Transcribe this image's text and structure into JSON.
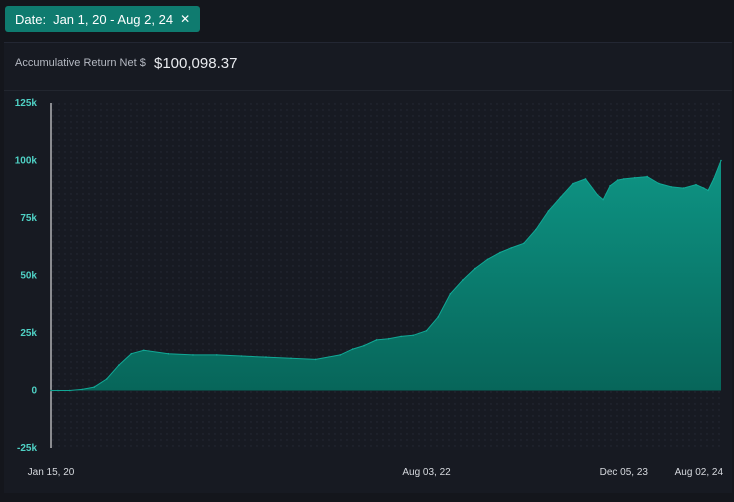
{
  "filter": {
    "label": "Date:",
    "value": "Jan 1, 20 - Aug 2, 24",
    "close_icon": "close-icon",
    "color": "#0f7b6f"
  },
  "metric": {
    "label": "Accumulative Return Net $",
    "value": "$100,098.37"
  },
  "chart_data": {
    "type": "area",
    "title": "",
    "xlabel": "",
    "ylabel": "",
    "ylim": [
      -25000,
      125000
    ],
    "yticks": [
      {
        "value": 125000,
        "label": "125k"
      },
      {
        "value": 100000,
        "label": "100k"
      },
      {
        "value": 75000,
        "label": "75k"
      },
      {
        "value": 50000,
        "label": "50k"
      },
      {
        "value": 25000,
        "label": "25k"
      },
      {
        "value": 0,
        "label": "0"
      },
      {
        "value": -25000,
        "label": "-25k"
      }
    ],
    "xlim": [
      "2020-01-15",
      "2024-08-02"
    ],
    "xticks": [
      {
        "date": "2020-01-15",
        "label": "Jan 15, 20"
      },
      {
        "date": "2022-08-03",
        "label": "Aug 03, 22"
      },
      {
        "date": "2023-12-05",
        "label": "Dec 05, 23"
      },
      {
        "date": "2024-08-02",
        "label": "Aug 02, 24"
      }
    ],
    "grid": true,
    "area_color": "#0b8a7a",
    "series": [
      {
        "x": [
          "2020-01-15",
          "2020-02-01",
          "2020-03-01",
          "2020-04-01",
          "2020-05-01",
          "2020-06-01",
          "2020-07-01",
          "2020-08-01",
          "2020-09-01",
          "2020-11-01",
          "2021-01-01",
          "2021-03-01",
          "2021-05-01",
          "2021-07-01",
          "2021-09-01",
          "2021-11-01",
          "2022-01-01",
          "2022-02-01",
          "2022-03-01",
          "2022-04-01",
          "2022-05-01",
          "2022-06-01",
          "2022-07-01",
          "2022-08-03",
          "2022-09-01",
          "2022-10-01",
          "2022-11-01",
          "2022-12-01",
          "2023-01-01",
          "2023-02-01",
          "2023-03-01",
          "2023-04-01",
          "2023-05-01",
          "2023-06-01",
          "2023-07-01",
          "2023-08-01",
          "2023-09-01",
          "2023-10-01",
          "2023-10-15",
          "2023-11-01",
          "2023-11-20",
          "2023-12-05",
          "2024-01-01",
          "2024-02-01",
          "2024-03-01",
          "2024-04-01",
          "2024-05-01",
          "2024-06-01",
          "2024-06-20",
          "2024-07-01",
          "2024-07-15",
          "2024-08-02"
        ],
        "y": [
          0,
          0,
          0,
          500,
          1500,
          5000,
          11000,
          16000,
          17500,
          16000,
          15500,
          15500,
          15000,
          14500,
          14000,
          13500,
          15500,
          18000,
          19500,
          22000,
          22500,
          23500,
          24000,
          26000,
          32000,
          42000,
          48000,
          53000,
          57000,
          60000,
          62000,
          64000,
          70000,
          78000,
          84000,
          90000,
          92000,
          85000,
          83000,
          89000,
          91500,
          92000,
          92500,
          93000,
          90000,
          88500,
          88000,
          89500,
          88000,
          87000,
          92000,
          100000
        ]
      }
    ]
  }
}
